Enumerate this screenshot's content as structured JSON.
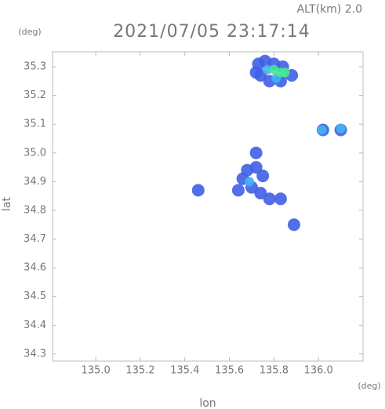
{
  "chart_data": {
    "type": "scatter",
    "title": "2021/07/05 23:17:14",
    "subtitle": "ALT(km) 2.0",
    "y_unit": "(deg)",
    "x_unit": "(deg)",
    "xlabel": "lon",
    "ylabel": "lat",
    "xlim": [
      134.806,
      136.2
    ],
    "ylim": [
      34.275,
      35.352
    ],
    "xticks": [
      {
        "value": 135,
        "label": "135.0"
      },
      135.2,
      135.4,
      135.6,
      135.8,
      {
        "value": 136,
        "label": "136.0"
      }
    ],
    "yticks": [
      34.3,
      34.4,
      34.5,
      34.6,
      34.7,
      34.8,
      34.9,
      {
        "value": 35,
        "label": "35.0"
      },
      35.1,
      35.2,
      35.3
    ],
    "series": [
      {
        "color": "#3f5fe6",
        "x": [
          135.73,
          135.76,
          135.8,
          135.84,
          135.88,
          135.74,
          135.78,
          135.83,
          135.72,
          136.02,
          136.1,
          135.66,
          135.75,
          135.72,
          135.72,
          135.68,
          135.74,
          135.78,
          135.83,
          135.64,
          135.46,
          135.89,
          135.7
        ],
        "values": [
          35.31,
          35.32,
          35.31,
          35.3,
          35.27,
          35.27,
          35.25,
          35.25,
          35.28,
          35.08,
          35.08,
          34.91,
          34.92,
          34.95,
          35.0,
          34.94,
          34.86,
          34.84,
          34.84,
          34.87,
          34.87,
          34.75,
          34.88
        ]
      },
      {
        "color": "#40b4f0",
        "x": [
          135.77,
          135.81,
          136.015,
          136.1,
          135.69
        ],
        "values": [
          35.29,
          35.26,
          35.08,
          35.085,
          34.9
        ]
      },
      {
        "color": "#46e890",
        "x": [
          135.8,
          135.83,
          135.85
        ],
        "values": [
          35.29,
          35.28,
          35.28
        ]
      }
    ]
  }
}
